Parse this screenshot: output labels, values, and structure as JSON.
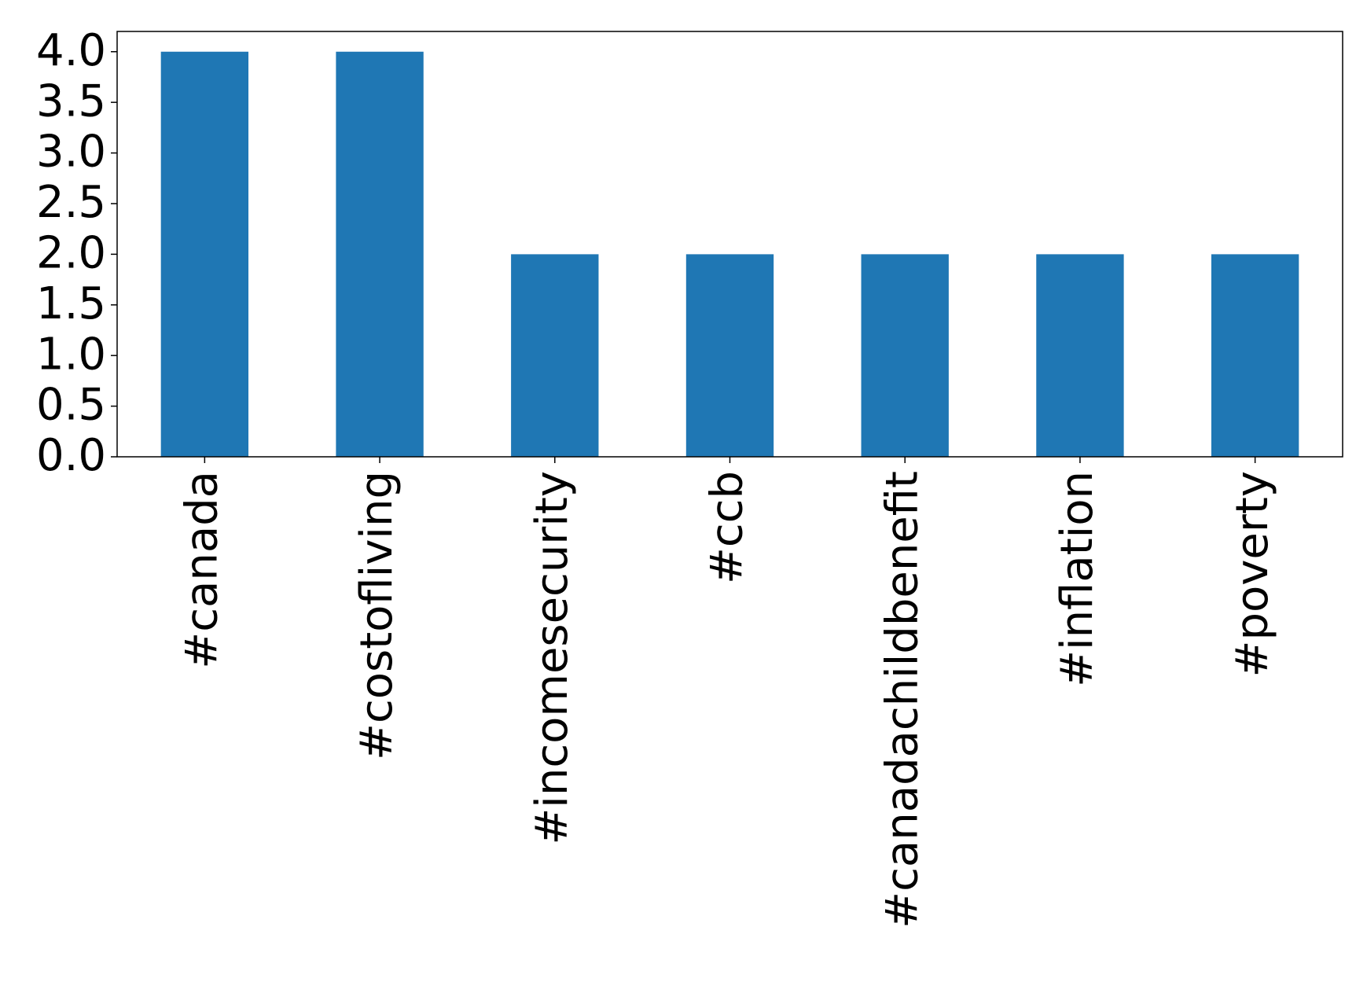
{
  "chart_data": {
    "type": "bar",
    "categories": [
      "#canada",
      "#costofliving",
      "#incomesecurity",
      "#ccb",
      "#canadachildbenefit",
      "#inflation",
      "#poverty"
    ],
    "values": [
      4,
      4,
      2,
      2,
      2,
      2,
      2
    ],
    "color": "#1f77b4",
    "ylim": [
      0,
      4.2
    ],
    "yticks": [
      {
        "value": 0,
        "label": "0.0"
      },
      0.5,
      {
        "value": 1,
        "label": "1.0"
      },
      1.5,
      {
        "value": 2,
        "label": "2.0"
      },
      2.5,
      {
        "value": 3,
        "label": "3.0"
      },
      3.5,
      {
        "value": 4,
        "label": "4.0"
      }
    ],
    "grid": false
  }
}
